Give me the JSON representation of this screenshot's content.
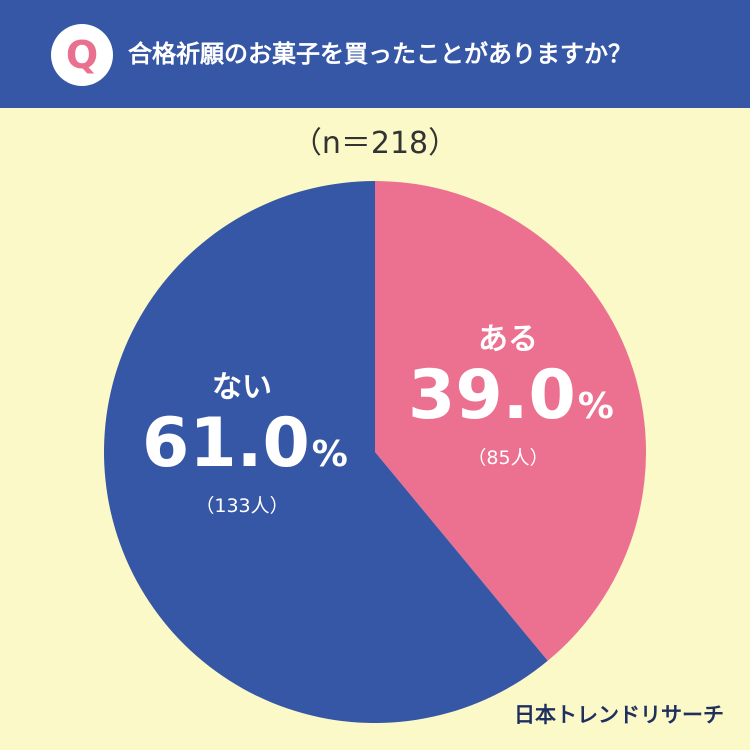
{
  "header": {
    "badge_letter": "Q",
    "question": "合格祈願のお菓子を買ったことがありますか？"
  },
  "sample_size_label": "（n＝218）",
  "chart_data": {
    "type": "pie",
    "title": "合格祈願のお菓子を買ったことがありますか？",
    "n": 218,
    "slices": [
      {
        "label": "ある",
        "percent": 39.0,
        "count": 85,
        "percent_text": "39.0",
        "unit": "%",
        "count_text": "（85人）",
        "color": "#ec7090"
      },
      {
        "label": "ない",
        "percent": 61.0,
        "count": 133,
        "percent_text": "61.0",
        "unit": "%",
        "count_text": "（133人）",
        "color": "#3656a6"
      }
    ]
  },
  "brand": "日本トレンドリサーチ",
  "colors": {
    "header_bg": "#3656a6",
    "page_bg": "#fbf9c8",
    "badge_letter": "#e9708f"
  }
}
